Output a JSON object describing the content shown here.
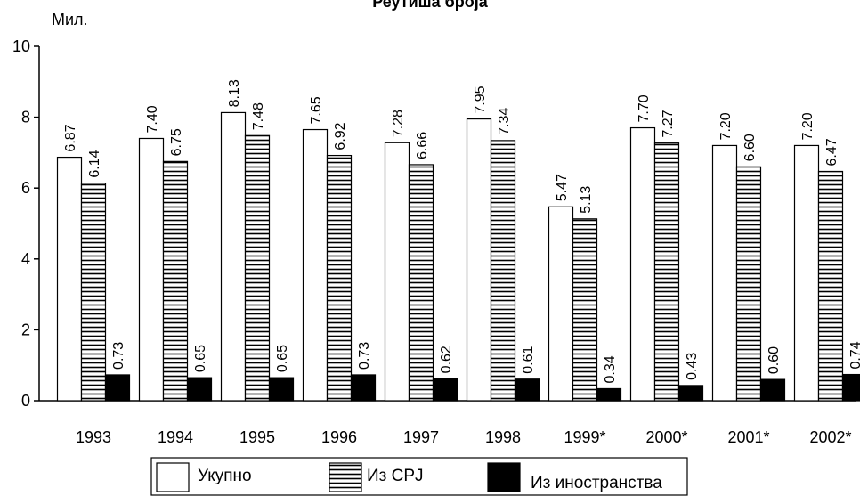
{
  "chart_data": {
    "type": "bar",
    "title": "Реутиша броја",
    "ylabel": "Мил.",
    "xlabel": "",
    "ylim": [
      0,
      10
    ],
    "yticks": [
      0,
      2,
      4,
      6,
      8,
      10
    ],
    "grid": false,
    "legend": "bottom",
    "categories": [
      "1993",
      "1994",
      "1995",
      "1996",
      "1997",
      "1998",
      "1999*",
      "2000*",
      "2001*",
      "2002*"
    ],
    "series": [
      {
        "name": "Укупно",
        "pattern": "white",
        "values": [
          6.87,
          7.4,
          8.13,
          7.65,
          7.28,
          7.95,
          5.47,
          7.7,
          7.2,
          7.2
        ],
        "labels": [
          "6.87",
          "7.40",
          "8.13",
          "7.65",
          "7.28",
          "7.95",
          "5.47",
          "7.70",
          "7.20",
          "7.20"
        ]
      },
      {
        "name": "Из СРЈ",
        "pattern": "horizontal-stripes",
        "values": [
          6.14,
          6.75,
          7.48,
          6.92,
          6.66,
          7.34,
          5.13,
          7.27,
          6.6,
          6.47
        ],
        "labels": [
          "6.14",
          "6.75",
          "7.48",
          "6.92",
          "6.66",
          "7.34",
          "5.13",
          "7.27",
          "6.60",
          "6.47"
        ]
      },
      {
        "name": "Из иностранства",
        "pattern": "black",
        "values": [
          0.73,
          0.65,
          0.65,
          0.73,
          0.62,
          0.61,
          0.34,
          0.43,
          0.6,
          0.74
        ],
        "labels": [
          "0.73",
          "0.65",
          "0.65",
          "0.73",
          "0.62",
          "0.61",
          "0.34",
          "0.43",
          "0.60",
          "0.74"
        ]
      }
    ]
  }
}
